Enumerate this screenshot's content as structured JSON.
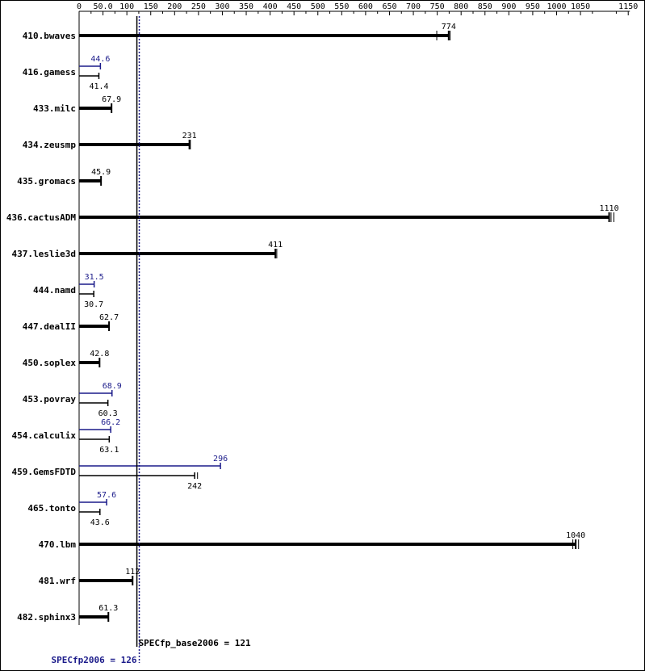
{
  "chart_data": {
    "type": "bar",
    "xlim": [
      0,
      1150
    ],
    "x_ticks": [
      {
        "v": 0,
        "label": "0"
      },
      {
        "v": 50,
        "label": "50.0"
      },
      {
        "v": 100,
        "label": "100"
      },
      {
        "v": 150,
        "label": "150"
      },
      {
        "v": 200,
        "label": "200"
      },
      {
        "v": 250,
        "label": "250"
      },
      {
        "v": 300,
        "label": "300"
      },
      {
        "v": 350,
        "label": "350"
      },
      {
        "v": 400,
        "label": "400"
      },
      {
        "v": 450,
        "label": "450"
      },
      {
        "v": 500,
        "label": "500"
      },
      {
        "v": 550,
        "label": "550"
      },
      {
        "v": 600,
        "label": "600"
      },
      {
        "v": 650,
        "label": "650"
      },
      {
        "v": 700,
        "label": "700"
      },
      {
        "v": 750,
        "label": "750"
      },
      {
        "v": 800,
        "label": "800"
      },
      {
        "v": 850,
        "label": "850"
      },
      {
        "v": 900,
        "label": "900"
      },
      {
        "v": 950,
        "label": "950"
      },
      {
        "v": 1000,
        "label": "1000"
      },
      {
        "v": 1050,
        "label": "1050"
      },
      {
        "v": 1150,
        "label": "1150"
      }
    ],
    "benchmarks": [
      {
        "name": "410.bwaves",
        "base": 774,
        "base_label": "774",
        "peak": null,
        "peak_label": "",
        "runs": [
          749,
          777
        ]
      },
      {
        "name": "416.gamess",
        "base": 41.4,
        "base_label": "41.4",
        "peak": 44.6,
        "peak_label": "44.6",
        "runs": []
      },
      {
        "name": "433.milc",
        "base": 67.9,
        "base_label": "67.9",
        "peak": null,
        "peak_label": "",
        "runs": []
      },
      {
        "name": "434.zeusmp",
        "base": 231,
        "base_label": "231",
        "peak": null,
        "peak_label": "",
        "runs": [
          233
        ]
      },
      {
        "name": "435.gromacs",
        "base": 45.9,
        "base_label": "45.9",
        "peak": null,
        "peak_label": "",
        "runs": []
      },
      {
        "name": "436.cactusADM",
        "base": 1110,
        "base_label": "1110",
        "peak": null,
        "peak_label": "",
        "runs": [
          1114,
          1120
        ]
      },
      {
        "name": "437.leslie3d",
        "base": 411,
        "base_label": "411",
        "peak": null,
        "peak_label": "",
        "runs": [
          414
        ]
      },
      {
        "name": "444.namd",
        "base": 30.7,
        "base_label": "30.7",
        "peak": 31.5,
        "peak_label": "31.5",
        "runs": []
      },
      {
        "name": "447.dealII",
        "base": 62.7,
        "base_label": "62.7",
        "peak": null,
        "peak_label": "",
        "runs": []
      },
      {
        "name": "450.soplex",
        "base": 42.8,
        "base_label": "42.8",
        "peak": null,
        "peak_label": "",
        "runs": []
      },
      {
        "name": "453.povray",
        "base": 60.3,
        "base_label": "60.3",
        "peak": 68.9,
        "peak_label": "68.9",
        "runs": []
      },
      {
        "name": "454.calculix",
        "base": 63.1,
        "base_label": "63.1",
        "peak": 66.2,
        "peak_label": "66.2",
        "runs": []
      },
      {
        "name": "459.GemsFDTD",
        "base": 242,
        "base_label": "242",
        "peak": 296,
        "peak_label": "296",
        "runs": [
          248
        ]
      },
      {
        "name": "465.tonto",
        "base": 43.6,
        "base_label": "43.6",
        "peak": 57.6,
        "peak_label": "57.6",
        "runs": []
      },
      {
        "name": "470.lbm",
        "base": 1040,
        "base_label": "1040",
        "peak": null,
        "peak_label": "",
        "runs": [
          1034,
          1046
        ]
      },
      {
        "name": "481.wrf",
        "base": 112,
        "base_label": "112",
        "peak": null,
        "peak_label": "",
        "runs": []
      },
      {
        "name": "482.sphinx3",
        "base": 61.3,
        "base_label": "61.3",
        "peak": null,
        "peak_label": "",
        "runs": []
      }
    ],
    "reference_lines": {
      "base": {
        "value": 121,
        "label": "SPECfp_base2006 = 121"
      },
      "peak": {
        "value": 126,
        "label": "SPECfp2006 = 126"
      }
    },
    "colors": {
      "base": "#000000",
      "peak": "#1b1b8a",
      "background": "#ffffff"
    }
  }
}
